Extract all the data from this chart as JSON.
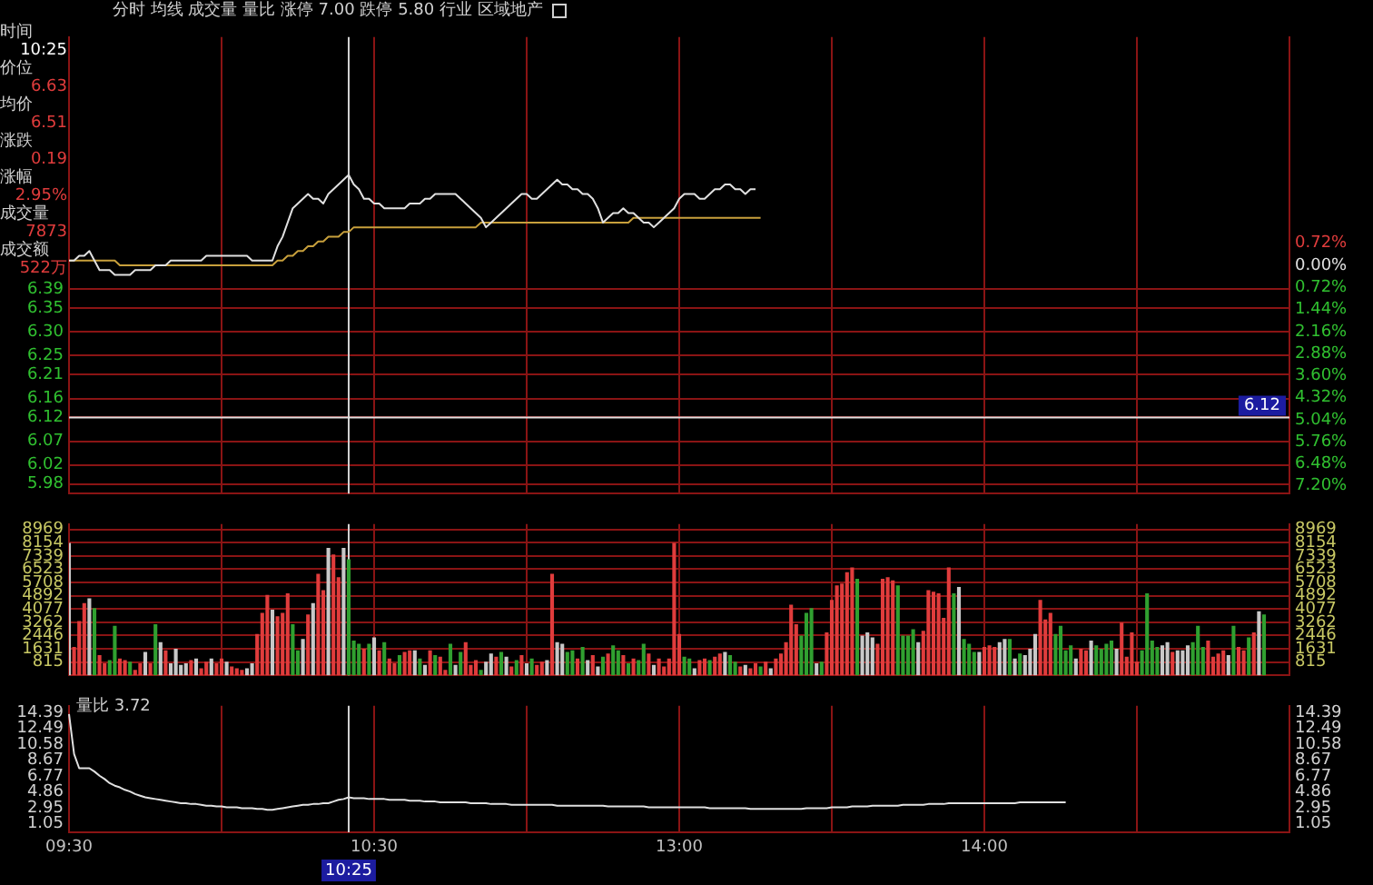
{
  "chart_data": [
    {
      "type": "line",
      "title": "分时 均线 成交量 量比 涨停 7.00 跌停 5.80 行业 区域地产",
      "annotations": [
        "时间",
        "10:25",
        "价位",
        "6.63",
        "均价",
        "6.51",
        "涨跌",
        "0.19",
        "涨幅",
        "2.95%",
        "成交量",
        "7873",
        "成交额",
        "522万"
      ],
      "categories": [
        "09:30",
        null,
        null,
        null,
        null,
        null,
        null,
        null,
        null,
        null,
        null,
        null,
        null,
        null,
        null,
        null,
        null,
        null,
        null,
        null,
        null,
        null,
        null,
        null,
        null,
        null,
        null,
        null,
        null,
        null,
        null,
        null,
        null,
        null,
        null,
        null,
        null,
        null,
        null,
        null,
        null,
        null,
        null,
        null,
        null,
        null,
        null,
        null,
        null,
        null,
        null,
        null,
        null,
        null,
        null,
        "10:25",
        null,
        null,
        null,
        null,
        "10:30",
        null,
        null,
        null,
        null,
        null,
        null,
        null,
        null,
        null,
        null,
        null,
        null,
        null,
        null,
        null,
        null,
        null,
        null,
        null,
        null,
        null,
        null,
        null,
        null,
        null,
        null,
        null,
        null,
        null,
        null,
        null,
        null,
        null,
        null,
        null,
        null,
        null,
        null,
        null,
        null,
        null,
        null,
        null,
        null,
        null,
        null,
        null,
        null,
        null,
        null,
        null,
        null,
        null,
        null,
        null,
        null,
        null,
        null,
        null,
        "13:00",
        null,
        null,
        null,
        null,
        null,
        null,
        null,
        null,
        null,
        null,
        null,
        null,
        null,
        null,
        null,
        null,
        null,
        null,
        null,
        null,
        null,
        null,
        null,
        null,
        null,
        null,
        null,
        null,
        null,
        null,
        null,
        null,
        null,
        null,
        null,
        null,
        null,
        null,
        null,
        null,
        null,
        null,
        null,
        null,
        null,
        null,
        null,
        null,
        null,
        null,
        null,
        null,
        null,
        null,
        null,
        null,
        null,
        null,
        null,
        "14:00",
        null,
        null,
        null,
        null,
        null,
        null,
        null,
        null,
        null,
        null,
        null,
        null,
        null,
        null,
        null,
        null,
        null,
        null,
        null,
        null,
        null,
        null,
        null,
        null,
        null,
        null,
        null,
        null,
        null,
        null,
        null,
        null,
        null,
        null,
        null,
        null,
        null,
        null,
        null,
        null,
        null,
        null,
        null,
        null,
        null,
        null,
        null,
        null,
        null,
        null,
        null,
        null,
        null,
        null,
        null,
        null,
        null,
        null,
        null,
        null
      ],
      "series": [
        {
          "color": "#e0e0e0",
          "values": [
            6.45,
            6.45,
            6.46,
            6.46,
            6.47,
            6.45,
            6.43,
            6.43,
            6.43,
            6.42,
            6.42,
            6.42,
            6.42,
            6.43,
            6.43,
            6.43,
            6.43,
            6.44,
            6.44,
            6.44,
            6.45,
            6.45,
            6.45,
            6.45,
            6.45,
            6.45,
            6.45,
            6.46,
            6.46,
            6.46,
            6.46,
            6.46,
            6.46,
            6.46,
            6.46,
            6.46,
            6.45,
            6.45,
            6.45,
            6.45,
            6.45,
            6.48,
            6.5,
            6.53,
            6.56,
            6.57,
            6.58,
            6.59,
            6.58,
            6.58,
            6.57,
            6.59,
            6.6,
            6.61,
            6.62,
            6.63,
            6.61,
            6.6,
            6.58,
            6.58,
            6.57,
            6.57,
            6.56,
            6.56,
            6.56,
            6.56,
            6.56,
            6.57,
            6.57,
            6.57,
            6.58,
            6.58,
            6.59,
            6.59,
            6.59,
            6.59,
            6.59,
            6.58,
            6.57,
            6.56,
            6.55,
            6.54,
            6.52,
            6.53,
            6.54,
            6.55,
            6.56,
            6.57,
            6.58,
            6.59,
            6.59,
            6.58,
            6.58,
            6.59,
            6.6,
            6.61,
            6.62,
            6.61,
            6.61,
            6.6,
            6.6,
            6.59,
            6.59,
            6.58,
            6.56,
            6.53,
            6.54,
            6.55,
            6.55,
            6.56,
            6.55,
            6.55,
            6.54,
            6.53,
            6.53,
            6.52,
            6.53,
            6.54,
            6.55,
            6.56,
            6.58,
            6.59,
            6.59,
            6.59,
            6.58,
            6.58,
            6.59,
            6.6,
            6.6,
            6.61,
            6.61,
            6.6,
            6.6,
            6.59,
            6.6,
            6.6,
            null,
            null,
            null,
            null,
            null,
            null,
            null,
            null,
            null,
            null,
            null,
            null,
            null,
            null,
            null,
            null,
            null,
            null,
            null,
            null,
            null,
            null,
            null,
            null,
            null,
            null,
            null,
            null,
            null,
            null,
            null,
            null,
            null,
            null,
            null,
            null,
            null,
            null,
            null,
            null,
            null,
            null,
            null,
            null,
            null,
            null,
            null,
            null,
            null,
            null,
            null,
            null,
            null,
            null,
            null,
            null,
            null,
            null,
            null,
            null,
            null,
            null,
            null,
            null,
            null,
            null,
            null,
            null,
            null,
            null,
            null,
            null,
            null,
            null,
            null,
            null,
            null,
            null,
            null,
            null,
            null,
            null,
            null,
            null,
            null,
            null,
            null,
            null,
            null,
            null,
            null,
            null,
            null,
            null,
            null,
            null,
            null,
            null,
            null,
            null,
            null,
            null,
            null,
            null,
            null
          ]
        },
        {
          "color": "#c8a03c",
          "values": [
            6.45,
            6.45,
            6.45,
            6.45,
            6.45,
            6.45,
            6.45,
            6.45,
            6.45,
            6.45,
            6.44,
            6.44,
            6.44,
            6.44,
            6.44,
            6.44,
            6.44,
            6.44,
            6.44,
            6.44,
            6.44,
            6.44,
            6.44,
            6.44,
            6.44,
            6.44,
            6.44,
            6.44,
            6.44,
            6.44,
            6.44,
            6.44,
            6.44,
            6.44,
            6.44,
            6.44,
            6.44,
            6.44,
            6.44,
            6.44,
            6.44,
            6.45,
            6.45,
            6.46,
            6.46,
            6.47,
            6.47,
            6.48,
            6.48,
            6.49,
            6.49,
            6.5,
            6.5,
            6.5,
            6.51,
            6.51,
            6.52,
            6.52,
            6.52,
            6.52,
            6.52,
            6.52,
            6.52,
            6.52,
            6.52,
            6.52,
            6.52,
            6.52,
            6.52,
            6.52,
            6.52,
            6.52,
            6.52,
            6.52,
            6.52,
            6.52,
            6.52,
            6.52,
            6.52,
            6.52,
            6.52,
            6.53,
            6.53,
            6.53,
            6.53,
            6.53,
            6.53,
            6.53,
            6.53,
            6.53,
            6.53,
            6.53,
            6.53,
            6.53,
            6.53,
            6.53,
            6.53,
            6.53,
            6.53,
            6.53,
            6.53,
            6.53,
            6.53,
            6.53,
            6.53,
            6.53,
            6.53,
            6.53,
            6.53,
            6.53,
            6.53,
            6.54,
            6.54,
            6.54,
            6.54,
            6.54,
            6.54,
            6.54,
            6.54,
            6.54,
            6.54,
            6.54,
            6.54,
            6.54,
            6.54,
            6.54,
            6.54,
            6.54,
            6.54,
            6.54,
            6.54,
            6.54,
            6.54,
            6.54,
            6.54,
            6.54,
            6.54,
            null,
            null,
            null,
            null,
            null,
            null,
            null,
            null,
            null,
            null,
            null,
            null,
            null,
            null,
            null,
            null,
            null,
            null,
            null,
            null,
            null,
            null,
            null,
            null,
            null,
            null,
            null,
            null,
            null,
            null,
            null,
            null,
            null,
            null,
            null,
            null,
            null,
            null,
            null,
            null,
            null,
            null,
            null,
            null,
            null,
            null,
            null,
            null,
            null,
            null,
            null,
            null,
            null,
            null,
            null,
            null,
            null,
            null,
            null,
            null,
            null,
            null,
            null,
            null,
            null,
            null,
            null,
            null,
            null,
            null,
            null,
            null,
            null,
            null,
            null,
            null,
            null,
            null,
            null,
            null,
            null,
            null,
            null,
            null,
            null,
            null,
            null,
            null,
            null,
            null,
            null,
            null,
            null,
            null,
            null,
            null,
            null,
            null,
            null,
            null,
            null,
            null,
            null,
            null
          ]
        }
      ],
      "ylim": [
        5.96,
        6.92
      ],
      "yticks": [
        6.39,
        6.35,
        {
          "value": 6.3,
          "label": "6.30"
        },
        6.25,
        6.21,
        6.16,
        6.12,
        6.07,
        6.02,
        5.98
      ],
      "y2lim": [
        -7.45,
        7.45
      ],
      "y2ticks": [
        {
          "value": 0.72,
          "label": "0.72%"
        },
        {
          "value": 0,
          "label": "0.00%"
        },
        {
          "value": -0.72,
          "label": "0.72%"
        },
        {
          "value": -1.44,
          "label": "1.44%"
        },
        {
          "value": -2.16,
          "label": "2.16%"
        },
        {
          "value": -2.88,
          "label": "2.88%"
        },
        {
          "value": -3.6,
          "label": "3.60%"
        },
        {
          "value": -4.32,
          "label": "4.32%"
        },
        {
          "value": -5.04,
          "label": "5.04%"
        },
        {
          "value": -5.76,
          "label": "5.76%"
        },
        {
          "value": -6.48,
          "label": "6.48%"
        },
        {
          "value": -7.2,
          "label": "7.20%"
        }
      ],
      "grid": true,
      "tick_labels": "y",
      "ref_lines": [
        {
          "axis": "x",
          "value": "10:25",
          "color": "#d0d0d0"
        },
        {
          "axis": "y",
          "value": 6.12,
          "label": "6.12",
          "color": "#e0e0e0"
        }
      ]
    },
    {
      "type": "bar",
      "categories": [
        "09:30",
        null,
        null,
        null,
        null,
        null,
        null,
        null,
        null,
        null,
        null,
        null,
        null,
        null,
        null,
        null,
        null,
        null,
        null,
        null,
        null,
        null,
        null,
        null,
        null,
        null,
        null,
        null,
        null,
        null,
        null,
        null,
        null,
        null,
        null,
        null,
        null,
        null,
        null,
        null,
        null,
        null,
        null,
        null,
        null,
        null,
        null,
        null,
        null,
        null,
        null,
        null,
        null,
        null,
        null,
        "10:25",
        null,
        null,
        null,
        null,
        "10:30",
        null,
        null,
        null,
        null,
        null,
        null,
        null,
        null,
        null,
        null,
        null,
        null,
        null,
        null,
        null,
        null,
        null,
        null,
        null,
        null,
        null,
        null,
        null,
        null,
        null,
        null,
        null,
        null,
        null,
        null,
        null,
        null,
        null,
        null,
        null,
        null,
        null,
        null,
        null,
        null,
        null,
        null,
        null,
        null,
        null,
        null,
        null,
        null,
        null,
        null,
        null,
        null,
        null,
        null,
        null,
        null,
        null,
        null,
        null,
        "13:00",
        null,
        null,
        null,
        null,
        null,
        null,
        null,
        null,
        null,
        null,
        null,
        null,
        null,
        null,
        null,
        null,
        null,
        null,
        null,
        null,
        null,
        null,
        null,
        null,
        null,
        null,
        null,
        null,
        null,
        null,
        null,
        null,
        null,
        null,
        null,
        null,
        null,
        null,
        null,
        null,
        null,
        null,
        null,
        null,
        null,
        null,
        null,
        null,
        null,
        null,
        null,
        null,
        null,
        null,
        null,
        null,
        null,
        null,
        null,
        "14:00",
        null,
        null,
        null,
        null,
        null,
        null,
        null,
        null,
        null,
        null,
        null,
        null,
        null,
        null,
        null,
        null,
        null,
        null,
        null,
        null,
        null,
        null,
        null,
        null,
        null,
        null,
        null,
        null,
        null,
        null,
        null,
        null,
        null,
        null,
        null,
        null,
        null,
        null,
        null,
        null,
        null,
        null,
        null,
        null,
        null,
        null,
        null,
        null,
        null,
        null,
        null,
        null,
        null,
        null,
        null,
        null,
        null,
        null,
        null,
        null
      ],
      "series": [
        {
          "values": [
            8100,
            1700,
            3300,
            4400,
            4700,
            4100,
            1200,
            700,
            900,
            3000,
            1000,
            900,
            800,
            300,
            700,
            1400,
            700,
            3100,
            2000,
            1500,
            700,
            1600,
            600,
            700,
            900,
            1000,
            400,
            800,
            1000,
            700,
            1000,
            800,
            500,
            400,
            300,
            400,
            700,
            2500,
            3800,
            4900,
            4000,
            3600,
            3800,
            5000,
            3100,
            1500,
            2200,
            3700,
            4400,
            6200,
            5200,
            7800,
            7400,
            6000,
            7800,
            7100,
            2100,
            1900,
            1600,
            1900,
            2300,
            1500,
            2000,
            1000,
            700,
            1200,
            1400,
            1500,
            1500,
            1000,
            600,
            1500,
            1200,
            1100,
            300,
            1900,
            600,
            1400,
            2000,
            600,
            900,
            300,
            800,
            1300,
            1100,
            1400,
            1100,
            500,
            900,
            1200,
            700,
            1000,
            600,
            800,
            900,
            6200,
            2000,
            1900,
            1400,
            1500,
            1000,
            1700,
            900,
            1200,
            500,
            1100,
            1300,
            1800,
            1500,
            1200,
            700,
            1000,
            900,
            1900,
            1300,
            600,
            1000,
            500,
            1000,
            8100,
            2500,
            1100,
            1000,
            400,
            900,
            1000,
            900,
            1100,
            1300,
            1400,
            1200,
            800,
            500,
            600,
            400,
            700,
            500,
            800,
            400,
            1000,
            1300,
            2000,
            4300,
            3100,
            2400,
            3800,
            4100,
            700,
            800,
            2600,
            4600,
            5500,
            5600,
            6300,
            6600,
            5900,
            2400,
            2600,
            2300,
            1900,
            5900,
            6000,
            5800,
            5500,
            2400,
            2400,
            2800,
            2000,
            2700,
            5200,
            5100,
            5000,
            3500,
            6600,
            5000,
            5400,
            2200,
            1900,
            1400,
            1400,
            1700,
            1800,
            1700,
            2000,
            2200,
            2200,
            1000,
            1300,
            1200,
            1600,
            2500,
            4600,
            3400,
            3800,
            2500,
            3000,
            1500,
            1800,
            1000,
            1600,
            1500,
            2100,
            1800,
            1600,
            1900,
            2100,
            1600,
            3200,
            1100,
            2600,
            800,
            1500,
            5000,
            2100,
            1700,
            1800,
            2000,
            1400,
            1500,
            1500,
            1800,
            2000,
            3000,
            1700,
            2100,
            1100,
            1300,
            1500,
            1200,
            3000,
            1700,
            1500,
            2300,
            2600,
            3900,
            3700,
            null,
            null,
            null,
            null,
            null
          ],
          "colors": [
            "#c8c8c8",
            "#e03c3c",
            "#e03c3c",
            "#e03c3c",
            "#c8c8c8",
            "#30a030",
            "#e03c3c",
            "#e03c3c",
            "#30a030",
            "#30a030",
            "#e03c3c",
            "#e03c3c",
            "#30a030",
            "#e03c3c",
            "#e03c3c",
            "#c8c8c8",
            "#e03c3c",
            "#30a030",
            "#c8c8c8",
            "#e03c3c",
            "#c8c8c8",
            "#c8c8c8",
            "#c8c8c8",
            "#c8c8c8",
            "#e03c3c",
            "#c8c8c8",
            "#e03c3c",
            "#e03c3c",
            "#c8c8c8",
            "#e03c3c",
            "#e03c3c",
            "#c8c8c8",
            "#e03c3c",
            "#e03c3c",
            "#e03c3c",
            "#c8c8c8",
            "#c8c8c8",
            "#e03c3c",
            "#e03c3c",
            "#e03c3c",
            "#c8c8c8",
            "#e03c3c",
            "#e03c3c",
            "#e03c3c",
            "#30a030",
            "#30a030",
            "#c8c8c8",
            "#e03c3c",
            "#c8c8c8",
            "#e03c3c",
            "#e03c3c",
            "#c8c8c8",
            "#e03c3c",
            "#e03c3c",
            "#c8c8c8",
            "#30a030",
            "#30a030",
            "#30a030",
            "#e03c3c",
            "#30a030",
            "#c8c8c8",
            "#e03c3c",
            "#30a030",
            "#e03c3c",
            "#e03c3c",
            "#30a030",
            "#e03c3c",
            "#e03c3c",
            "#c8c8c8",
            "#30a030",
            "#c8c8c8",
            "#e03c3c",
            "#30a030",
            "#e03c3c",
            "#e03c3c",
            "#30a030",
            "#c8c8c8",
            "#30a030",
            "#e03c3c",
            "#e03c3c",
            "#e03c3c",
            "#30a030",
            "#c8c8c8",
            "#c8c8c8",
            "#e03c3c",
            "#30a030",
            "#c8c8c8",
            "#e03c3c",
            "#30a030",
            "#e03c3c",
            "#c8c8c8",
            "#30a030",
            "#e03c3c",
            "#e03c3c",
            "#c8c8c8",
            "#e03c3c",
            "#c8c8c8",
            "#c8c8c8",
            "#30a030",
            "#30a030",
            "#e03c3c",
            "#30a030",
            "#c8c8c8",
            "#e03c3c",
            "#c8c8c8",
            "#30a030",
            "#e03c3c",
            "#30a030",
            "#30a030",
            "#e03c3c",
            "#30a030",
            "#e03c3c",
            "#30a030",
            "#30a030",
            "#e03c3c",
            "#c8c8c8",
            "#e03c3c",
            "#e03c3c",
            "#e03c3c",
            "#e03c3c",
            "#e03c3c",
            "#30a030",
            "#30a030",
            "#c8c8c8",
            "#e03c3c",
            "#e03c3c",
            "#30a030",
            "#e03c3c",
            "#e03c3c",
            "#c8c8c8",
            "#30a030",
            "#30a030",
            "#e03c3c",
            "#c8c8c8",
            "#e03c3c",
            "#e03c3c",
            "#30a030",
            "#e03c3c",
            "#c8c8c8",
            "#e03c3c",
            "#e03c3c",
            "#e03c3c",
            "#e03c3c",
            "#e03c3c",
            "#30a030",
            "#30a030",
            "#30a030",
            "#c8c8c8",
            "#30a030",
            "#e03c3c",
            "#e03c3c",
            "#e03c3c",
            "#e03c3c",
            "#e03c3c",
            "#e03c3c",
            "#30a030",
            "#c8c8c8",
            "#c8c8c8",
            "#c8c8c8",
            "#e03c3c",
            "#e03c3c",
            "#e03c3c",
            "#e03c3c",
            "#30a030",
            "#30a030",
            "#30a030",
            "#30a030",
            "#c8c8c8",
            "#e03c3c",
            "#e03c3c",
            "#e03c3c",
            "#e03c3c",
            "#e03c3c",
            "#e03c3c",
            "#30a030",
            "#c8c8c8",
            "#30a030",
            "#30a030",
            "#30a030",
            "#c8c8c8",
            "#e03c3c",
            "#e03c3c",
            "#e03c3c",
            "#c8c8c8",
            "#c8c8c8",
            "#30a030",
            "#c8c8c8",
            "#30a030",
            "#c8c8c8",
            "#c8c8c8",
            "#c8c8c8",
            "#e03c3c",
            "#e03c3c",
            "#e03c3c",
            "#30a030",
            "#30a030",
            "#30a030",
            "#30a030",
            "#c8c8c8",
            "#e03c3c",
            "#e03c3c",
            "#c8c8c8",
            "#30a030",
            "#30a030",
            "#30a030",
            "#30a030",
            "#c8c8c8",
            "#e03c3c",
            "#e03c3c",
            "#e03c3c",
            "#e03c3c",
            "#30a030",
            "#30a030",
            "#30a030",
            "#30a030",
            "#c8c8c8",
            "#c8c8c8",
            "#e03c3c",
            "#c8c8c8",
            "#c8c8c8",
            "#c8c8c8",
            "#30a030",
            "#30a030",
            "#30a030",
            "#e03c3c",
            "#e03c3c",
            "#e03c3c",
            "#e03c3c",
            "#c8c8c8",
            "#30a030",
            "#e03c3c",
            "#e03c3c",
            "#30a030",
            "#e03c3c",
            "#c8c8c8",
            "#30a030",
            null,
            null,
            null,
            null,
            null
          ]
        }
      ],
      "ylim": [
        0,
        9300
      ],
      "yticks": [
        815,
        1631,
        2446,
        3262,
        4077,
        4892,
        5708,
        6523,
        7339,
        8154,
        8969
      ],
      "y2lim": [
        0,
        9300
      ],
      "y2ticks": [
        815,
        1631,
        2446,
        3262,
        4077,
        4892,
        5708,
        6523,
        7339,
        8154,
        8969
      ],
      "grid": true,
      "tick_labels": "y",
      "ref_lines": [
        {
          "axis": "x",
          "value": "10:25",
          "color": "#d0d0d0"
        }
      ]
    },
    {
      "type": "line",
      "title": "量比 3.72",
      "categories": [
        "09:30",
        null,
        null,
        null,
        null,
        null,
        null,
        null,
        null,
        null,
        null,
        null,
        null,
        null,
        null,
        null,
        null,
        null,
        null,
        null,
        null,
        null,
        null,
        null,
        null,
        null,
        null,
        null,
        null,
        null,
        null,
        null,
        null,
        null,
        null,
        null,
        null,
        null,
        null,
        null,
        null,
        null,
        null,
        null,
        null,
        null,
        null,
        null,
        null,
        null,
        null,
        null,
        null,
        null,
        null,
        "10:25",
        null,
        null,
        null,
        null,
        "10:30",
        null,
        null,
        null,
        null,
        null,
        null,
        null,
        null,
        null,
        null,
        null,
        null,
        null,
        null,
        null,
        null,
        null,
        null,
        null,
        null,
        null,
        null,
        null,
        null,
        null,
        null,
        null,
        null,
        null,
        null,
        null,
        null,
        null,
        null,
        null,
        null,
        null,
        null,
        null,
        null,
        null,
        null,
        null,
        null,
        null,
        null,
        null,
        null,
        null,
        null,
        null,
        null,
        null,
        null,
        null,
        null,
        null,
        null,
        null,
        "13:00",
        null,
        null,
        null,
        null,
        null,
        null,
        null,
        null,
        null,
        null,
        null,
        null,
        null,
        null,
        null,
        null,
        null,
        null,
        null,
        null,
        null,
        null,
        null,
        null,
        null,
        null,
        null,
        null,
        null,
        null,
        null,
        null,
        null,
        null,
        null,
        null,
        null,
        null,
        null,
        null,
        null,
        null,
        null,
        null,
        null,
        null,
        null,
        null,
        null,
        null,
        null,
        null,
        null,
        null,
        null,
        null,
        null,
        null,
        null,
        "14:00",
        null,
        null,
        null,
        null,
        null,
        null,
        null,
        null,
        null,
        null,
        null,
        null,
        null,
        null,
        null,
        null,
        null,
        null,
        null,
        null,
        null,
        null,
        null,
        null,
        null,
        null,
        null,
        null,
        null,
        null,
        null,
        null,
        null,
        null,
        null,
        null,
        null,
        null,
        null,
        null,
        null,
        null,
        null,
        null,
        null,
        null,
        null,
        null,
        null,
        null,
        null,
        null,
        null,
        null,
        null,
        null,
        null,
        null,
        null,
        null
      ],
      "series": [
        {
          "color": "#e0e0e0",
          "values": [
            14.2,
            9.4,
            7.7,
            7.7,
            7.7,
            7.3,
            6.8,
            6.4,
            5.9,
            5.6,
            5.4,
            5.1,
            4.9,
            4.6,
            4.4,
            4.2,
            4.1,
            4.0,
            3.9,
            3.8,
            3.7,
            3.6,
            3.5,
            3.5,
            3.4,
            3.4,
            3.3,
            3.2,
            3.2,
            3.1,
            3.1,
            3.0,
            3.0,
            3.0,
            2.9,
            2.9,
            2.9,
            2.8,
            2.8,
            2.7,
            2.7,
            2.8,
            2.9,
            3.0,
            3.1,
            3.2,
            3.3,
            3.3,
            3.4,
            3.4,
            3.5,
            3.5,
            3.7,
            3.9,
            4.0,
            4.2,
            4.1,
            4.1,
            4.1,
            4.0,
            4.0,
            4.0,
            4.0,
            3.9,
            3.9,
            3.9,
            3.9,
            3.8,
            3.8,
            3.8,
            3.7,
            3.7,
            3.7,
            3.6,
            3.6,
            3.6,
            3.6,
            3.6,
            3.6,
            3.5,
            3.5,
            3.5,
            3.5,
            3.4,
            3.4,
            3.4,
            3.4,
            3.3,
            3.3,
            3.3,
            3.3,
            3.3,
            3.3,
            3.3,
            3.3,
            3.3,
            3.2,
            3.2,
            3.2,
            3.2,
            3.2,
            3.2,
            3.2,
            3.2,
            3.2,
            3.2,
            3.1,
            3.1,
            3.1,
            3.1,
            3.1,
            3.1,
            3.1,
            3.1,
            3.0,
            3.0,
            3.0,
            3.0,
            3.0,
            3.0,
            3.0,
            3.0,
            3.0,
            3.0,
            3.0,
            3.0,
            2.9,
            2.9,
            2.9,
            2.9,
            2.9,
            2.9,
            2.9,
            2.9,
            2.8,
            2.8,
            2.8,
            2.8,
            2.8,
            2.8,
            2.8,
            2.8,
            2.8,
            2.8,
            2.8,
            2.9,
            2.9,
            2.9,
            2.9,
            2.9,
            3.0,
            3.0,
            3.0,
            3.0,
            3.1,
            3.1,
            3.1,
            3.1,
            3.2,
            3.2,
            3.2,
            3.2,
            3.2,
            3.2,
            3.3,
            3.3,
            3.3,
            3.3,
            3.3,
            3.4,
            3.4,
            3.4,
            3.4,
            3.5,
            3.5,
            3.5,
            3.5,
            3.5,
            3.5,
            3.5,
            3.5,
            3.5,
            3.5,
            3.5,
            3.5,
            3.5,
            3.5,
            3.6,
            3.6,
            3.6,
            3.6,
            3.6,
            3.6,
            3.6,
            3.6,
            3.6,
            3.6,
            null,
            null,
            null,
            null,
            null,
            null,
            null,
            null,
            null,
            null,
            null,
            null,
            null,
            null,
            null,
            null,
            null,
            null,
            null,
            null,
            null,
            null,
            null,
            null,
            null,
            null,
            null,
            null,
            null,
            null,
            null,
            null,
            null,
            null,
            null,
            null,
            null,
            null,
            null,
            null,
            null,
            null,
            null,
            null
          ]
        }
      ],
      "ylim": [
        0,
        15.2
      ],
      "yticks": [
        1.05,
        2.95,
        4.86,
        6.77,
        8.67,
        10.58,
        12.49,
        14.39
      ],
      "y2lim": [
        0,
        15.2
      ],
      "y2ticks": [
        1.05,
        2.95,
        4.86,
        6.77,
        8.67,
        10.58,
        12.49,
        14.39
      ],
      "grid": "x",
      "ref_lines": [
        {
          "axis": "x",
          "value": "10:25",
          "color": "#d0d0d0"
        }
      ]
    }
  ]
}
